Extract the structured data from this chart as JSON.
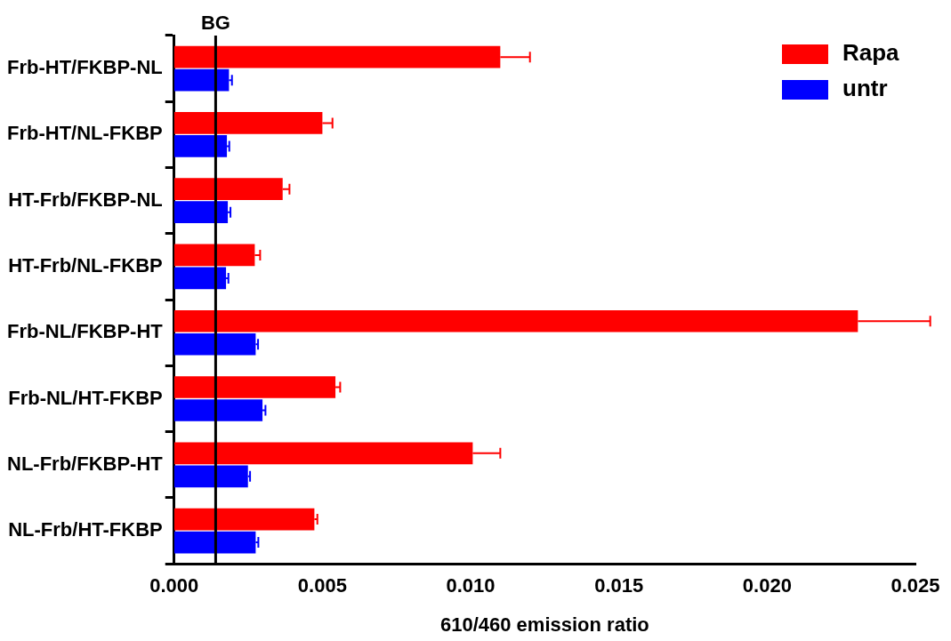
{
  "chart_data": {
    "type": "bar",
    "orientation": "horizontal",
    "xlabel": "610/460 emission ratio",
    "categories": [
      "Frb-HT/FKBP-NL",
      "Frb-HT/NL-FKBP",
      "HT-Frb/FKBP-NL",
      "HT-Frb/NL-FKBP",
      "Frb-NL/FKBP-HT",
      "Frb-NL/HT-FKBP",
      "NL-Frb/FKBP-HT",
      "NL-Frb/HT-FKBP"
    ],
    "series": [
      {
        "name": "Rapa",
        "color": "#ff0000",
        "values": [
          0.011,
          0.005,
          0.00366,
          0.00272,
          0.02306,
          0.00544,
          0.01007,
          0.00473
        ],
        "errors": [
          [
            0.011,
            0.012
          ],
          [
            0.005,
            0.00534
          ],
          [
            0.00366,
            0.00389
          ],
          [
            0.00272,
            0.0029
          ],
          [
            0.02306,
            0.0255
          ],
          [
            0.00544,
            0.0056
          ],
          [
            0.01007,
            0.011
          ],
          [
            0.00473,
            0.00483
          ]
        ]
      },
      {
        "name": "untr",
        "color": "#0000ff",
        "values": [
          0.00185,
          0.00178,
          0.00181,
          0.00175,
          0.00275,
          0.00298,
          0.00249,
          0.00275
        ],
        "errors": [
          [
            0.00185,
            0.00195
          ],
          [
            0.00178,
            0.00186
          ],
          [
            0.00181,
            0.0019
          ],
          [
            0.00175,
            0.00183
          ],
          [
            0.00275,
            0.00283
          ],
          [
            0.00298,
            0.00308
          ],
          [
            0.00249,
            0.00256
          ],
          [
            0.00275,
            0.00284
          ]
        ]
      }
    ],
    "xlim": [
      0,
      0.025
    ],
    "xticks": [
      {
        "value": 0,
        "label": "0.000"
      },
      {
        "value": 0.005,
        "label": "0.005"
      },
      {
        "value": 0.01,
        "label": "0.010"
      },
      {
        "value": 0.015,
        "label": "0.015"
      },
      {
        "value": 0.02,
        "label": "0.020"
      },
      {
        "value": 0.025,
        "label": "0.025"
      }
    ],
    "ref_lines": [
      {
        "axis": "x",
        "value": 0.0014,
        "label": "BG",
        "color": "#000000"
      }
    ],
    "legend": "top right",
    "grid": false
  }
}
